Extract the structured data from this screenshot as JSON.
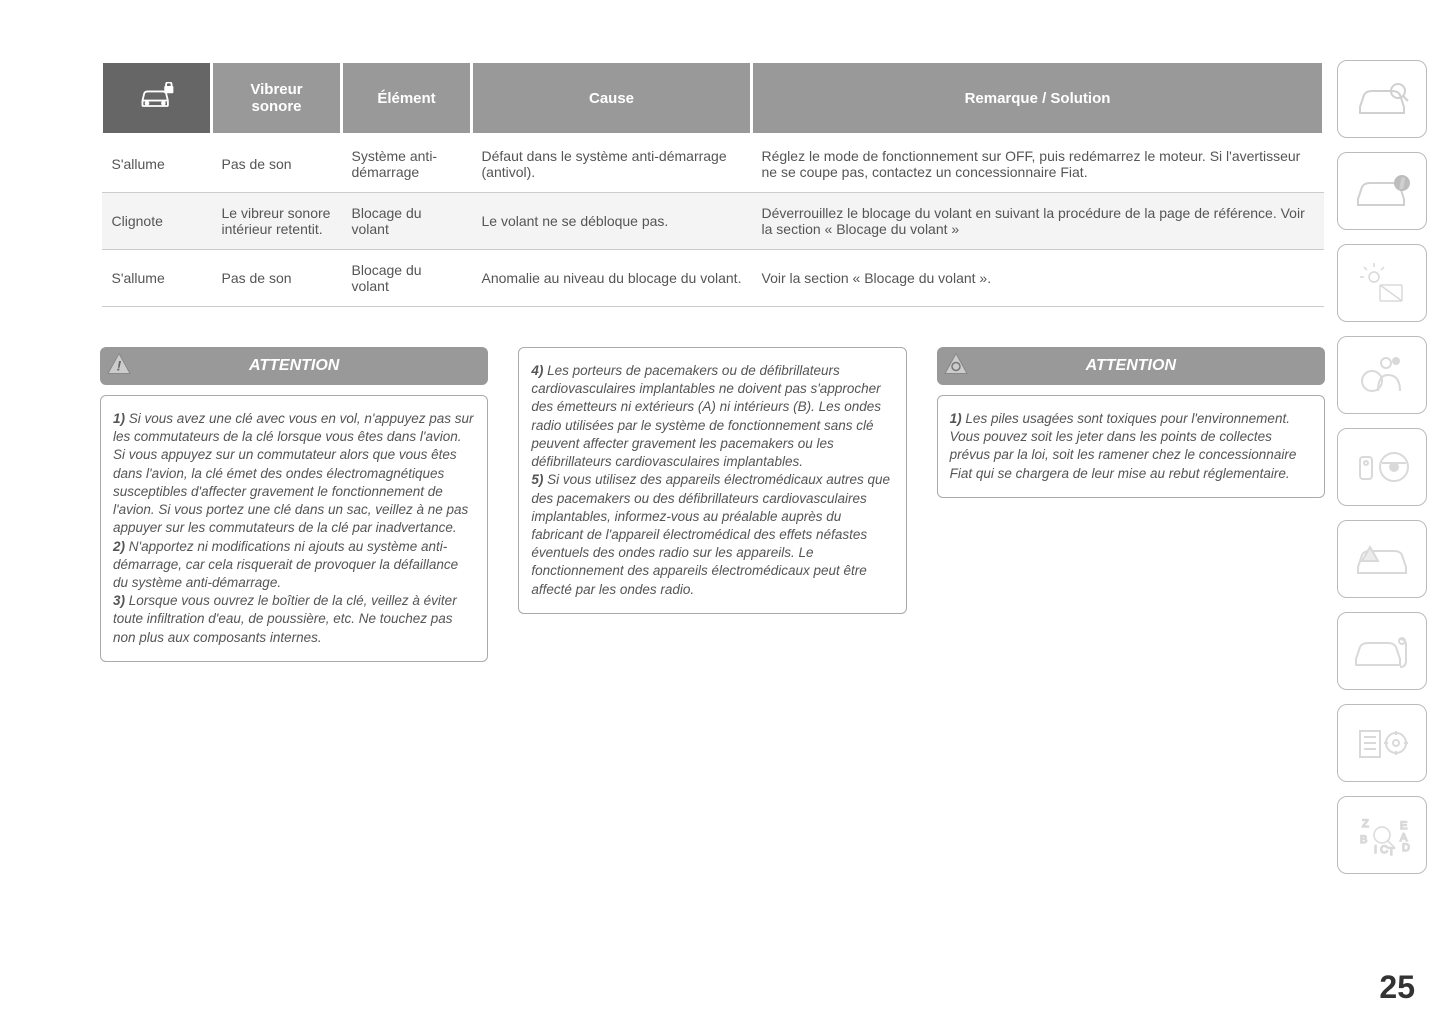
{
  "table": {
    "headers": {
      "icon": "car-lock-icon",
      "vibreur": "Vibreur sonore",
      "element": "Élément",
      "cause": "Cause",
      "remarque": "Remarque / Solution"
    },
    "rows": [
      {
        "status": "S'allume",
        "vibreur": "Pas de son",
        "element": "Système anti-démarrage",
        "cause": "Défaut dans le système anti-démarrage (antivol).",
        "remarque": "Réglez le mode de fonctionnement sur OFF, puis redémarrez le moteur. Si l'avertisseur ne se coupe pas, contactez un concessionnaire Fiat."
      },
      {
        "status": "Clignote",
        "vibreur": "Le vibreur sonore intérieur retentit.",
        "element": "Blocage du volant",
        "cause": "Le volant ne se débloque pas.",
        "remarque": "Déverrouillez le blocage du volant en suivant la procédure de la page de référence. Voir la section « Blocage du volant »"
      },
      {
        "status": "S'allume",
        "vibreur": "Pas de son",
        "element": "Blocage du volant",
        "cause": "Anomalie au niveau du blocage du volant.",
        "remarque": "Voir la section « Blocage du volant »."
      }
    ]
  },
  "attention1": {
    "title": "ATTENTION",
    "items": [
      {
        "n": "1)",
        "text": "Si vous avez une clé avec vous en vol, n'appuyez pas sur les commutateurs de la clé lorsque vous êtes dans l'avion. Si vous appuyez sur un commutateur alors que vous êtes dans l'avion, la clé émet des ondes électromagnétiques susceptibles d'affecter gravement le fonctionnement de l'avion. Si vous portez une clé dans un sac, veillez à ne pas appuyer sur les commutateurs de la clé par inadvertance."
      },
      {
        "n": "2)",
        "text": "N'apportez ni modifications ni ajouts au système anti-démarrage, car cela risquerait de provoquer la défaillance du système anti-démarrage."
      },
      {
        "n": "3)",
        "text": "Lorsque vous ouvrez le boîtier de la clé, veillez à éviter toute infiltration d'eau, de poussière, etc. Ne touchez pas non plus aux composants internes."
      }
    ]
  },
  "attention_mid": {
    "items": [
      {
        "n": "4)",
        "text": "Les porteurs de pacemakers ou de défibrillateurs cardiovasculaires implantables ne doivent pas s'approcher des émetteurs ni extérieurs (A) ni intérieurs (B). Les ondes radio utilisées par le système de fonctionnement sans clé peuvent affecter gravement les pacemakers ou les défibrillateurs cardiovasculaires implantables."
      },
      {
        "n": "5)",
        "text": "Si vous utilisez des appareils électromédicaux autres que des pacemakers ou des défibrillateurs cardiovasculaires implantables, informez-vous au préalable auprès du fabricant de l'appareil électromédical des effets néfastes éventuels des ondes radio sur les appareils. Le fonctionnement des appareils électromédicaux peut être affecté par les ondes radio."
      }
    ]
  },
  "attention2": {
    "title": "ATTENTION",
    "items": [
      {
        "n": "1)",
        "text": "Les piles usagées sont toxiques pour l'environnement. Vous pouvez soit les jeter dans les points de collectes prévus par la loi, soit les ramener chez le concessionnaire Fiat qui se chargera de leur mise au rebut réglementaire."
      }
    ]
  },
  "page_number": "25",
  "colors": {
    "header_bg": "#999999",
    "header_dark": "#666666",
    "text": "#555555",
    "border": "#aaaaaa"
  }
}
